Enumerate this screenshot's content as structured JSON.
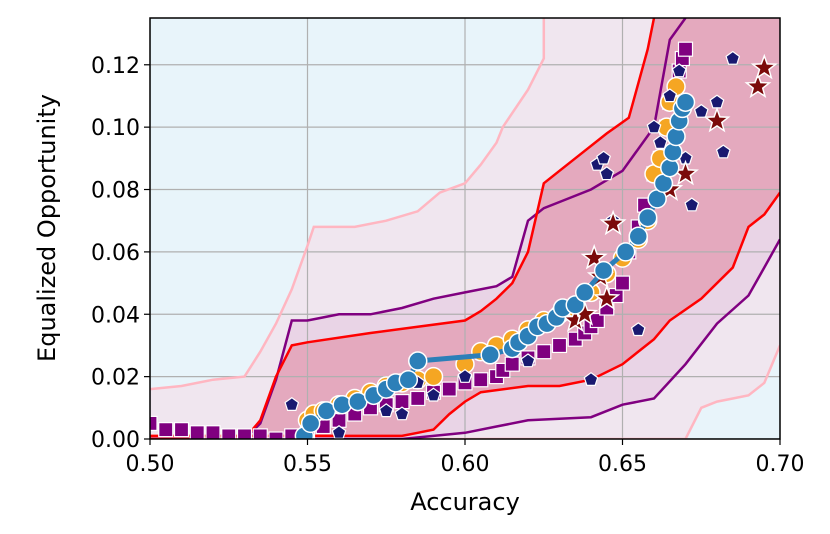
{
  "chart_data": {
    "type": "scatter",
    "xlabel": "Accuracy",
    "ylabel": "Equalized Opportunity",
    "xlim": [
      0.5,
      0.7
    ],
    "ylim": [
      0.0,
      0.135
    ],
    "x_ticks": [
      "0.50",
      "0.55",
      "0.60",
      "0.65",
      "0.70"
    ],
    "y_ticks": [
      "0.00",
      "0.02",
      "0.04",
      "0.06",
      "0.08",
      "0.10",
      "0.12"
    ],
    "grid": true,
    "colors": {
      "background_band": "#e8f4fa",
      "pink_band": "#f0e6ef",
      "purple_band": "#e9d4e6",
      "red_band": "#e4a9be",
      "pink_line": "#ffb6c1",
      "purple_line": "#800080",
      "red_line": "#ff0000",
      "square": "#800080",
      "circle_orange": "#f5a623",
      "circle_blue": "#2c7fb8",
      "pentagon": "#191970",
      "star": "#7b0a0a",
      "grid": "#b0b0b0"
    },
    "bands": {
      "pink_upper": [
        [
          0.5,
          0.016
        ],
        [
          0.51,
          0.017
        ],
        [
          0.52,
          0.019
        ],
        [
          0.53,
          0.02
        ],
        [
          0.535,
          0.028
        ],
        [
          0.54,
          0.037
        ],
        [
          0.545,
          0.048
        ],
        [
          0.55,
          0.062
        ],
        [
          0.552,
          0.068
        ],
        [
          0.565,
          0.068
        ],
        [
          0.575,
          0.07
        ],
        [
          0.585,
          0.073
        ],
        [
          0.592,
          0.079
        ],
        [
          0.6,
          0.082
        ],
        [
          0.605,
          0.088
        ],
        [
          0.61,
          0.095
        ],
        [
          0.612,
          0.1
        ],
        [
          0.62,
          0.112
        ],
        [
          0.622,
          0.116
        ],
        [
          0.625,
          0.122
        ],
        [
          0.625,
          0.135
        ]
      ],
      "purple_upper": [
        [
          0.5,
          0.0
        ],
        [
          0.53,
          0.0
        ],
        [
          0.535,
          0.005
        ],
        [
          0.54,
          0.019
        ],
        [
          0.545,
          0.038
        ],
        [
          0.55,
          0.038
        ],
        [
          0.555,
          0.039
        ],
        [
          0.56,
          0.04
        ],
        [
          0.57,
          0.04
        ],
        [
          0.58,
          0.042
        ],
        [
          0.59,
          0.045
        ],
        [
          0.6,
          0.047
        ],
        [
          0.61,
          0.049
        ],
        [
          0.615,
          0.052
        ],
        [
          0.62,
          0.07
        ],
        [
          0.625,
          0.074
        ],
        [
          0.63,
          0.076
        ],
        [
          0.64,
          0.08
        ],
        [
          0.65,
          0.086
        ],
        [
          0.66,
          0.1
        ],
        [
          0.665,
          0.128
        ],
        [
          0.67,
          0.135
        ]
      ],
      "red_upper": [
        [
          0.5,
          0.0
        ],
        [
          0.53,
          0.0
        ],
        [
          0.535,
          0.006
        ],
        [
          0.54,
          0.02
        ],
        [
          0.545,
          0.03
        ],
        [
          0.55,
          0.031
        ],
        [
          0.57,
          0.034
        ],
        [
          0.585,
          0.036
        ],
        [
          0.6,
          0.038
        ],
        [
          0.605,
          0.041
        ],
        [
          0.61,
          0.045
        ],
        [
          0.615,
          0.05
        ],
        [
          0.62,
          0.06
        ],
        [
          0.625,
          0.082
        ],
        [
          0.63,
          0.086
        ],
        [
          0.635,
          0.09
        ],
        [
          0.645,
          0.098
        ],
        [
          0.652,
          0.103
        ],
        [
          0.658,
          0.125
        ],
        [
          0.66,
          0.135
        ]
      ],
      "red_lower": [
        [
          0.5,
          0.001
        ],
        [
          0.58,
          0.001
        ],
        [
          0.585,
          0.002
        ],
        [
          0.59,
          0.003
        ],
        [
          0.595,
          0.008
        ],
        [
          0.6,
          0.012
        ],
        [
          0.605,
          0.015
        ],
        [
          0.62,
          0.017
        ],
        [
          0.63,
          0.017
        ],
        [
          0.64,
          0.019
        ],
        [
          0.65,
          0.024
        ],
        [
          0.66,
          0.032
        ],
        [
          0.665,
          0.038
        ],
        [
          0.675,
          0.045
        ],
        [
          0.685,
          0.055
        ],
        [
          0.69,
          0.068
        ],
        [
          0.695,
          0.072
        ],
        [
          0.7,
          0.079
        ]
      ],
      "purple_lower": [
        [
          0.5,
          0.0
        ],
        [
          0.58,
          0.0
        ],
        [
          0.59,
          0.001
        ],
        [
          0.6,
          0.002
        ],
        [
          0.61,
          0.004
        ],
        [
          0.62,
          0.006
        ],
        [
          0.64,
          0.007
        ],
        [
          0.65,
          0.011
        ],
        [
          0.66,
          0.013
        ],
        [
          0.67,
          0.024
        ],
        [
          0.68,
          0.037
        ],
        [
          0.69,
          0.046
        ],
        [
          0.695,
          0.055
        ],
        [
          0.7,
          0.064
        ]
      ],
      "pink_lower": [
        [
          0.5,
          0.0
        ],
        [
          0.65,
          0.0
        ],
        [
          0.67,
          0.0
        ],
        [
          0.675,
          0.01
        ],
        [
          0.68,
          0.012
        ],
        [
          0.685,
          0.013
        ],
        [
          0.69,
          0.014
        ],
        [
          0.695,
          0.018
        ],
        [
          0.7,
          0.03
        ]
      ]
    },
    "series": [
      {
        "marker": "square",
        "color": "#800080",
        "x": [
          0.5,
          0.505,
          0.51,
          0.515,
          0.52,
          0.525,
          0.53,
          0.535,
          0.54,
          0.545,
          0.55,
          0.555,
          0.56,
          0.565,
          0.57,
          0.575,
          0.58,
          0.585,
          0.59,
          0.595,
          0.6,
          0.605,
          0.61,
          0.612,
          0.615,
          0.62,
          0.625,
          0.63,
          0.635,
          0.638,
          0.64,
          0.642,
          0.645,
          0.648,
          0.65,
          0.652,
          0.655,
          0.657,
          0.66,
          0.662,
          0.664,
          0.665,
          0.667,
          0.668,
          0.669,
          0.67
        ],
        "y": [
          0.005,
          0.003,
          0.003,
          0.002,
          0.002,
          0.001,
          0.001,
          0.001,
          0.0,
          0.001,
          0.002,
          0.004,
          0.006,
          0.008,
          0.01,
          0.011,
          0.012,
          0.013,
          0.015,
          0.016,
          0.018,
          0.019,
          0.02,
          0.022,
          0.024,
          0.026,
          0.028,
          0.03,
          0.032,
          0.034,
          0.036,
          0.038,
          0.042,
          0.046,
          0.05,
          0.06,
          0.068,
          0.075,
          0.085,
          0.09,
          0.1,
          0.108,
          0.112,
          0.118,
          0.122,
          0.125
        ]
      },
      {
        "marker": "circle",
        "color": "#f5a623",
        "x": [
          0.55,
          0.552,
          0.555,
          0.56,
          0.565,
          0.57,
          0.575,
          0.58,
          0.585,
          0.59,
          0.6,
          0.605,
          0.61,
          0.615,
          0.62,
          0.625,
          0.63,
          0.635,
          0.64,
          0.645,
          0.65,
          0.655,
          0.658,
          0.66,
          0.662,
          0.664,
          0.665,
          0.667
        ],
        "y": [
          0.006,
          0.008,
          0.009,
          0.011,
          0.013,
          0.015,
          0.017,
          0.018,
          0.019,
          0.02,
          0.024,
          0.028,
          0.03,
          0.032,
          0.035,
          0.038,
          0.04,
          0.042,
          0.047,
          0.053,
          0.058,
          0.064,
          0.07,
          0.085,
          0.09,
          0.1,
          0.108,
          0.113
        ]
      },
      {
        "marker": "pentagon",
        "color": "#191970",
        "x": [
          0.545,
          0.56,
          0.575,
          0.58,
          0.585,
          0.59,
          0.6,
          0.62,
          0.64,
          0.642,
          0.644,
          0.645,
          0.647,
          0.655,
          0.66,
          0.662,
          0.665,
          0.668,
          0.67,
          0.672,
          0.675,
          0.68,
          0.682,
          0.685
        ],
        "y": [
          0.011,
          0.002,
          0.009,
          0.008,
          0.018,
          0.014,
          0.02,
          0.025,
          0.019,
          0.088,
          0.09,
          0.085,
          0.07,
          0.035,
          0.1,
          0.095,
          0.11,
          0.118,
          0.09,
          0.075,
          0.105,
          0.108,
          0.092,
          0.122
        ]
      },
      {
        "marker": "star",
        "color": "#7b0a0a",
        "x": [
          0.635,
          0.638,
          0.641,
          0.643,
          0.645,
          0.647,
          0.665,
          0.67,
          0.68,
          0.693,
          0.695
        ],
        "y": [
          0.038,
          0.04,
          0.058,
          0.052,
          0.045,
          0.069,
          0.08,
          0.085,
          0.102,
          0.113,
          0.119
        ]
      },
      {
        "marker": "circle",
        "color": "#2c7fb8",
        "line": true,
        "x": [
          0.549,
          0.551,
          0.556,
          0.561,
          0.566,
          0.571,
          0.575,
          0.578,
          0.582,
          0.585,
          0.608,
          0.615,
          0.617,
          0.62,
          0.623,
          0.626,
          0.629,
          0.631,
          0.635,
          0.638,
          0.644,
          0.651,
          0.655,
          0.658,
          0.661,
          0.663,
          0.665,
          0.666,
          0.667,
          0.668,
          0.669,
          0.67
        ],
        "y": [
          0.001,
          0.005,
          0.009,
          0.011,
          0.012,
          0.014,
          0.016,
          0.018,
          0.019,
          0.025,
          0.027,
          0.029,
          0.031,
          0.033,
          0.036,
          0.037,
          0.039,
          0.042,
          0.043,
          0.047,
          0.054,
          0.06,
          0.065,
          0.071,
          0.077,
          0.082,
          0.087,
          0.092,
          0.097,
          0.102,
          0.106,
          0.108
        ]
      }
    ]
  }
}
